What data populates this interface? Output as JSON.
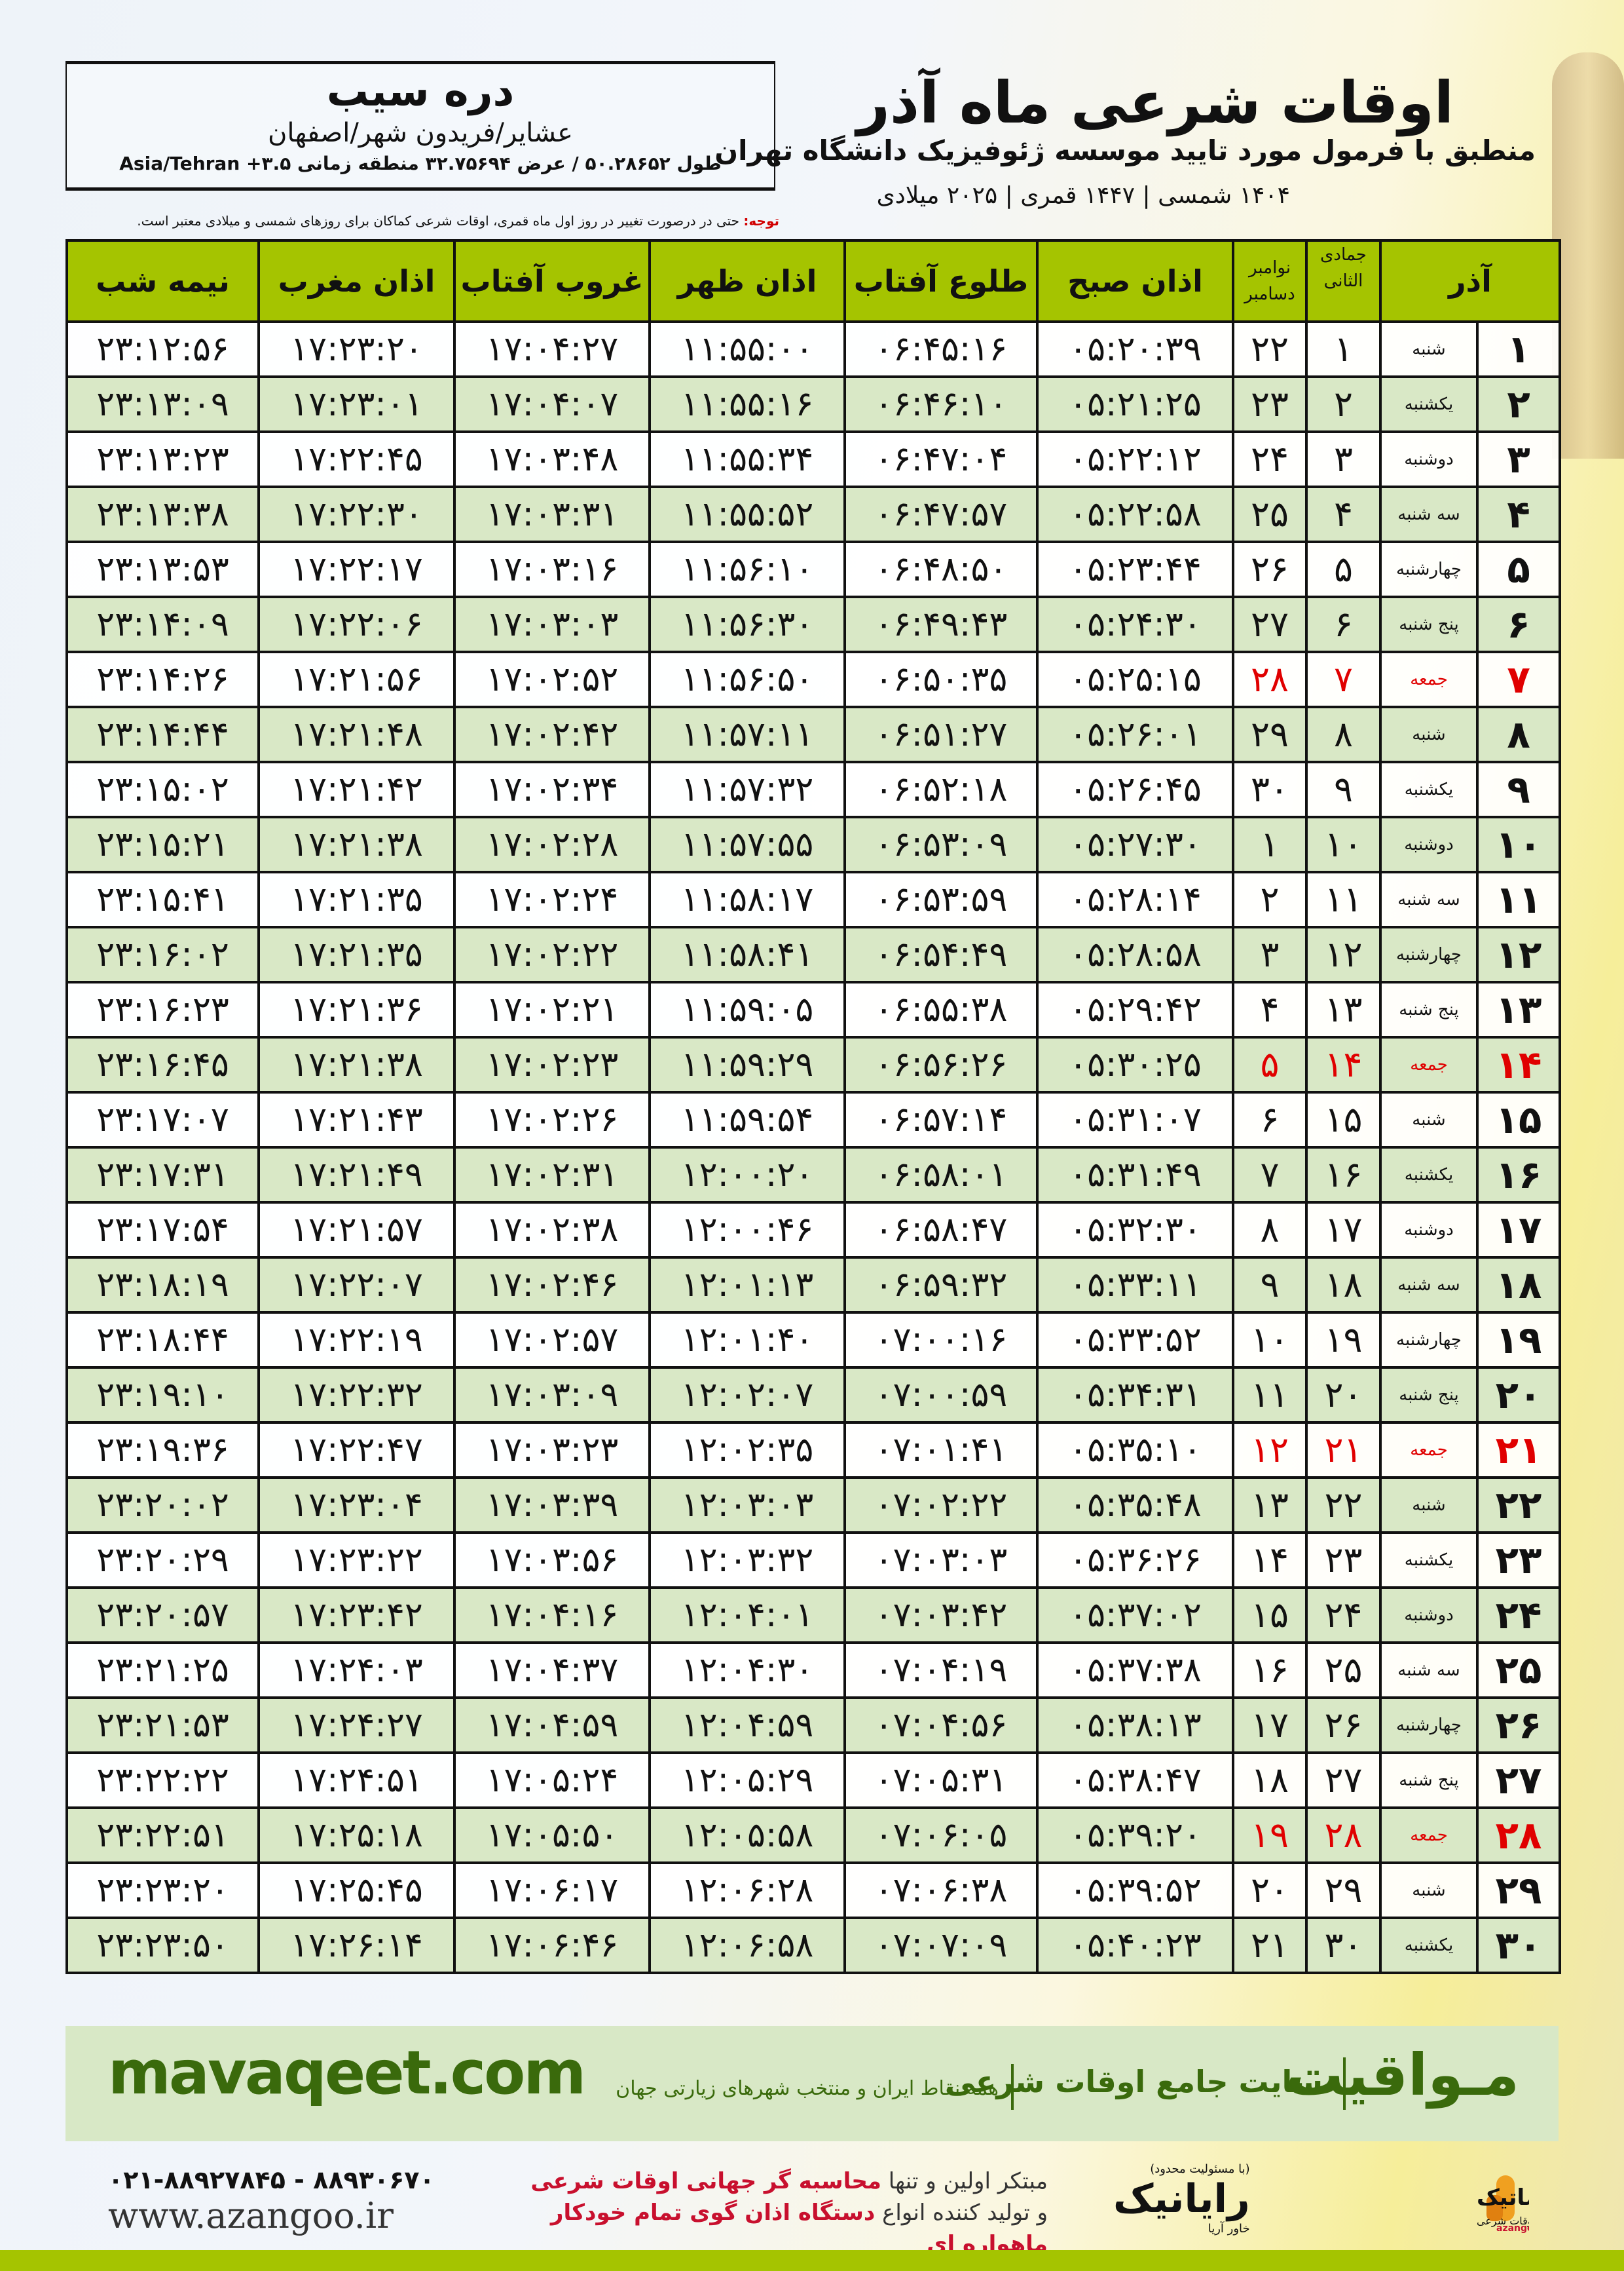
{
  "header": {
    "title": "اوقات شرعی ماه آذر",
    "subtitle": "منطبق با فرمول مورد تایید موسسه ژئوفیزیک دانشگاه تهران",
    "years": "۱۴۰۴ شمسی | ۱۴۴۷ قمری | ۲۰۲۵ میلادی"
  },
  "location": {
    "name": "دره سیب",
    "path": "عشایر/فریدون شهر/اصفهان",
    "coords": "طول ۵۰.۲۸۶۵۲ / عرض ۳۲.۷۵۶۹۴ منطقه زمانی Asia/Tehran +۳.۵"
  },
  "note": {
    "label": "توجه:",
    "text": " حتی در درصورت تغییر در روز اول ماه قمری، اوقات شرعی کماکان برای روزهای شمسی و میلادی معتبر است."
  },
  "table": {
    "headers": {
      "month": "آذر",
      "hijri": "جمادی الثانی",
      "greg_top": "نوامبر",
      "greg_bottom": "دسامبر",
      "fajr": "اذان صبح",
      "sunrise": "طلوع آفتاب",
      "dhuhr": "اذان ظهر",
      "sunset": "غروب آفتاب",
      "maghrib": "اذان مغرب",
      "midnight": "نیمه شب"
    },
    "highlight_color": "#e00000",
    "header_color": "#a5c400",
    "rows": [
      {
        "day": "۱",
        "weekday": "شنبه",
        "hijri": "۱",
        "greg": "۲۲",
        "fajr": "۰۵:۲۰:۳۹",
        "sunrise": "۰۶:۴۵:۱۶",
        "dhuhr": "۱۱:۵۵:۰۰",
        "sunset": "۱۷:۰۴:۲۷",
        "maghrib": "۱۷:۲۳:۲۰",
        "midnight": "۲۳:۱۲:۵۶"
      },
      {
        "day": "۲",
        "weekday": "یکشنبه",
        "hijri": "۲",
        "greg": "۲۳",
        "fajr": "۰۵:۲۱:۲۵",
        "sunrise": "۰۶:۴۶:۱۰",
        "dhuhr": "۱۱:۵۵:۱۶",
        "sunset": "۱۷:۰۴:۰۷",
        "maghrib": "۱۷:۲۳:۰۱",
        "midnight": "۲۳:۱۳:۰۹"
      },
      {
        "day": "۳",
        "weekday": "دوشنبه",
        "hijri": "۳",
        "greg": "۲۴",
        "fajr": "۰۵:۲۲:۱۲",
        "sunrise": "۰۶:۴۷:۰۴",
        "dhuhr": "۱۱:۵۵:۳۴",
        "sunset": "۱۷:۰۳:۴۸",
        "maghrib": "۱۷:۲۲:۴۵",
        "midnight": "۲۳:۱۳:۲۳"
      },
      {
        "day": "۴",
        "weekday": "سه شنبه",
        "hijri": "۴",
        "greg": "۲۵",
        "fajr": "۰۵:۲۲:۵۸",
        "sunrise": "۰۶:۴۷:۵۷",
        "dhuhr": "۱۱:۵۵:۵۲",
        "sunset": "۱۷:۰۳:۳۱",
        "maghrib": "۱۷:۲۲:۳۰",
        "midnight": "۲۳:۱۳:۳۸"
      },
      {
        "day": "۵",
        "weekday": "چهارشنبه",
        "hijri": "۵",
        "greg": "۲۶",
        "fajr": "۰۵:۲۳:۴۴",
        "sunrise": "۰۶:۴۸:۵۰",
        "dhuhr": "۱۱:۵۶:۱۰",
        "sunset": "۱۷:۰۳:۱۶",
        "maghrib": "۱۷:۲۲:۱۷",
        "midnight": "۲۳:۱۳:۵۳"
      },
      {
        "day": "۶",
        "weekday": "پنج شنبه",
        "hijri": "۶",
        "greg": "۲۷",
        "fajr": "۰۵:۲۴:۳۰",
        "sunrise": "۰۶:۴۹:۴۳",
        "dhuhr": "۱۱:۵۶:۳۰",
        "sunset": "۱۷:۰۳:۰۳",
        "maghrib": "۱۷:۲۲:۰۶",
        "midnight": "۲۳:۱۴:۰۹"
      },
      {
        "day": "۷",
        "weekday": "جمعه",
        "hijri": "۷",
        "greg": "۲۸",
        "friday": true,
        "fajr": "۰۵:۲۵:۱۵",
        "sunrise": "۰۶:۵۰:۳۵",
        "dhuhr": "۱۱:۵۶:۵۰",
        "sunset": "۱۷:۰۲:۵۲",
        "maghrib": "۱۷:۲۱:۵۶",
        "midnight": "۲۳:۱۴:۲۶"
      },
      {
        "day": "۸",
        "weekday": "شنبه",
        "hijri": "۸",
        "greg": "۲۹",
        "fajr": "۰۵:۲۶:۰۱",
        "sunrise": "۰۶:۵۱:۲۷",
        "dhuhr": "۱۱:۵۷:۱۱",
        "sunset": "۱۷:۰۲:۴۲",
        "maghrib": "۱۷:۲۱:۴۸",
        "midnight": "۲۳:۱۴:۴۴"
      },
      {
        "day": "۹",
        "weekday": "یکشنبه",
        "hijri": "۹",
        "greg": "۳۰",
        "fajr": "۰۵:۲۶:۴۵",
        "sunrise": "۰۶:۵۲:۱۸",
        "dhuhr": "۱۱:۵۷:۳۲",
        "sunset": "۱۷:۰۲:۳۴",
        "maghrib": "۱۷:۲۱:۴۲",
        "midnight": "۲۳:۱۵:۰۲"
      },
      {
        "day": "۱۰",
        "weekday": "دوشنبه",
        "hijri": "۱۰",
        "greg": "۱",
        "fajr": "۰۵:۲۷:۳۰",
        "sunrise": "۰۶:۵۳:۰۹",
        "dhuhr": "۱۱:۵۷:۵۵",
        "sunset": "۱۷:۰۲:۲۸",
        "maghrib": "۱۷:۲۱:۳۸",
        "midnight": "۲۳:۱۵:۲۱"
      },
      {
        "day": "۱۱",
        "weekday": "سه شنبه",
        "hijri": "۱۱",
        "greg": "۲",
        "fajr": "۰۵:۲۸:۱۴",
        "sunrise": "۰۶:۵۳:۵۹",
        "dhuhr": "۱۱:۵۸:۱۷",
        "sunset": "۱۷:۰۲:۲۴",
        "maghrib": "۱۷:۲۱:۳۵",
        "midnight": "۲۳:۱۵:۴۱"
      },
      {
        "day": "۱۲",
        "weekday": "چهارشنبه",
        "hijri": "۱۲",
        "greg": "۳",
        "fajr": "۰۵:۲۸:۵۸",
        "sunrise": "۰۶:۵۴:۴۹",
        "dhuhr": "۱۱:۵۸:۴۱",
        "sunset": "۱۷:۰۲:۲۲",
        "maghrib": "۱۷:۲۱:۳۵",
        "midnight": "۲۳:۱۶:۰۲"
      },
      {
        "day": "۱۳",
        "weekday": "پنج شنبه",
        "hijri": "۱۳",
        "greg": "۴",
        "fajr": "۰۵:۲۹:۴۲",
        "sunrise": "۰۶:۵۵:۳۸",
        "dhuhr": "۱۱:۵۹:۰۵",
        "sunset": "۱۷:۰۲:۲۱",
        "maghrib": "۱۷:۲۱:۳۶",
        "midnight": "۲۳:۱۶:۲۳"
      },
      {
        "day": "۱۴",
        "weekday": "جمعه",
        "hijri": "۱۴",
        "greg": "۵",
        "friday": true,
        "fajr": "۰۵:۳۰:۲۵",
        "sunrise": "۰۶:۵۶:۲۶",
        "dhuhr": "۱۱:۵۹:۲۹",
        "sunset": "۱۷:۰۲:۲۳",
        "maghrib": "۱۷:۲۱:۳۸",
        "midnight": "۲۳:۱۶:۴۵"
      },
      {
        "day": "۱۵",
        "weekday": "شنبه",
        "hijri": "۱۵",
        "greg": "۶",
        "fajr": "۰۵:۳۱:۰۷",
        "sunrise": "۰۶:۵۷:۱۴",
        "dhuhr": "۱۱:۵۹:۵۴",
        "sunset": "۱۷:۰۲:۲۶",
        "maghrib": "۱۷:۲۱:۴۳",
        "midnight": "۲۳:۱۷:۰۷"
      },
      {
        "day": "۱۶",
        "weekday": "یکشنبه",
        "hijri": "۱۶",
        "greg": "۷",
        "fajr": "۰۵:۳۱:۴۹",
        "sunrise": "۰۶:۵۸:۰۱",
        "dhuhr": "۱۲:۰۰:۲۰",
        "sunset": "۱۷:۰۲:۳۱",
        "maghrib": "۱۷:۲۱:۴۹",
        "midnight": "۲۳:۱۷:۳۱"
      },
      {
        "day": "۱۷",
        "weekday": "دوشنبه",
        "hijri": "۱۷",
        "greg": "۸",
        "fajr": "۰۵:۳۲:۳۰",
        "sunrise": "۰۶:۵۸:۴۷",
        "dhuhr": "۱۲:۰۰:۴۶",
        "sunset": "۱۷:۰۲:۳۸",
        "maghrib": "۱۷:۲۱:۵۷",
        "midnight": "۲۳:۱۷:۵۴"
      },
      {
        "day": "۱۸",
        "weekday": "سه شنبه",
        "hijri": "۱۸",
        "greg": "۹",
        "fajr": "۰۵:۳۳:۱۱",
        "sunrise": "۰۶:۵۹:۳۲",
        "dhuhr": "۱۲:۰۱:۱۳",
        "sunset": "۱۷:۰۲:۴۶",
        "maghrib": "۱۷:۲۲:۰۷",
        "midnight": "۲۳:۱۸:۱۹"
      },
      {
        "day": "۱۹",
        "weekday": "چهارشنبه",
        "hijri": "۱۹",
        "greg": "۱۰",
        "fajr": "۰۵:۳۳:۵۲",
        "sunrise": "۰۷:۰۰:۱۶",
        "dhuhr": "۱۲:۰۱:۴۰",
        "sunset": "۱۷:۰۲:۵۷",
        "maghrib": "۱۷:۲۲:۱۹",
        "midnight": "۲۳:۱۸:۴۴"
      },
      {
        "day": "۲۰",
        "weekday": "پنج شنبه",
        "hijri": "۲۰",
        "greg": "۱۱",
        "fajr": "۰۵:۳۴:۳۱",
        "sunrise": "۰۷:۰۰:۵۹",
        "dhuhr": "۱۲:۰۲:۰۷",
        "sunset": "۱۷:۰۳:۰۹",
        "maghrib": "۱۷:۲۲:۳۲",
        "midnight": "۲۳:۱۹:۱۰"
      },
      {
        "day": "۲۱",
        "weekday": "جمعه",
        "hijri": "۲۱",
        "greg": "۱۲",
        "friday": true,
        "fajr": "۰۵:۳۵:۱۰",
        "sunrise": "۰۷:۰۱:۴۱",
        "dhuhr": "۱۲:۰۲:۳۵",
        "sunset": "۱۷:۰۳:۲۳",
        "maghrib": "۱۷:۲۲:۴۷",
        "midnight": "۲۳:۱۹:۳۶"
      },
      {
        "day": "۲۲",
        "weekday": "شنبه",
        "hijri": "۲۲",
        "greg": "۱۳",
        "fajr": "۰۵:۳۵:۴۸",
        "sunrise": "۰۷:۰۲:۲۲",
        "dhuhr": "۱۲:۰۳:۰۳",
        "sunset": "۱۷:۰۳:۳۹",
        "maghrib": "۱۷:۲۳:۰۴",
        "midnight": "۲۳:۲۰:۰۲"
      },
      {
        "day": "۲۳",
        "weekday": "یکشنبه",
        "hijri": "۲۳",
        "greg": "۱۴",
        "fajr": "۰۵:۳۶:۲۶",
        "sunrise": "۰۷:۰۳:۰۳",
        "dhuhr": "۱۲:۰۳:۳۲",
        "sunset": "۱۷:۰۳:۵۶",
        "maghrib": "۱۷:۲۳:۲۲",
        "midnight": "۲۳:۲۰:۲۹"
      },
      {
        "day": "۲۴",
        "weekday": "دوشنبه",
        "hijri": "۲۴",
        "greg": "۱۵",
        "fajr": "۰۵:۳۷:۰۲",
        "sunrise": "۰۷:۰۳:۴۲",
        "dhuhr": "۱۲:۰۴:۰۱",
        "sunset": "۱۷:۰۴:۱۶",
        "maghrib": "۱۷:۲۳:۴۲",
        "midnight": "۲۳:۲۰:۵۷"
      },
      {
        "day": "۲۵",
        "weekday": "سه شنبه",
        "hijri": "۲۵",
        "greg": "۱۶",
        "fajr": "۰۵:۳۷:۳۸",
        "sunrise": "۰۷:۰۴:۱۹",
        "dhuhr": "۱۲:۰۴:۳۰",
        "sunset": "۱۷:۰۴:۳۷",
        "maghrib": "۱۷:۲۴:۰۳",
        "midnight": "۲۳:۲۱:۲۵"
      },
      {
        "day": "۲۶",
        "weekday": "چهارشنبه",
        "hijri": "۲۶",
        "greg": "۱۷",
        "fajr": "۰۵:۳۸:۱۳",
        "sunrise": "۰۷:۰۴:۵۶",
        "dhuhr": "۱۲:۰۴:۵۹",
        "sunset": "۱۷:۰۴:۵۹",
        "maghrib": "۱۷:۲۴:۲۷",
        "midnight": "۲۳:۲۱:۵۳"
      },
      {
        "day": "۲۷",
        "weekday": "پنج شنبه",
        "hijri": "۲۷",
        "greg": "۱۸",
        "fajr": "۰۵:۳۸:۴۷",
        "sunrise": "۰۷:۰۵:۳۱",
        "dhuhr": "۱۲:۰۵:۲۹",
        "sunset": "۱۷:۰۵:۲۴",
        "maghrib": "۱۷:۲۴:۵۱",
        "midnight": "۲۳:۲۲:۲۲"
      },
      {
        "day": "۲۸",
        "weekday": "جمعه",
        "hijri": "۲۸",
        "greg": "۱۹",
        "friday": true,
        "fajr": "۰۵:۳۹:۲۰",
        "sunrise": "۰۷:۰۶:۰۵",
        "dhuhr": "۱۲:۰۵:۵۸",
        "sunset": "۱۷:۰۵:۵۰",
        "maghrib": "۱۷:۲۵:۱۸",
        "midnight": "۲۳:۲۲:۵۱"
      },
      {
        "day": "۲۹",
        "weekday": "شنبه",
        "hijri": "۲۹",
        "greg": "۲۰",
        "fajr": "۰۵:۳۹:۵۲",
        "sunrise": "۰۷:۰۶:۳۸",
        "dhuhr": "۱۲:۰۶:۲۸",
        "sunset": "۱۷:۰۶:۱۷",
        "maghrib": "۱۷:۲۵:۴۵",
        "midnight": "۲۳:۲۳:۲۰"
      },
      {
        "day": "۳۰",
        "weekday": "یکشنبه",
        "hijri": "۳۰",
        "greg": "۲۱",
        "fajr": "۰۵:۴۰:۲۳",
        "sunrise": "۰۷:۰۷:۰۹",
        "dhuhr": "۱۲:۰۶:۵۸",
        "sunset": "۱۷:۰۶:۴۶",
        "maghrib": "۱۷:۲۶:۱۴",
        "midnight": "۲۳:۲۳:۵۰"
      }
    ]
  },
  "banner": {
    "brand": "مـواقیت",
    "slogan": "سایت جامع اوقات شرعی",
    "sub": "همه نقاط ایران و منتخب شهرهای زیارتی جهان",
    "url": "mavaqeet.com",
    "color": "#3a6a0c"
  },
  "footer": {
    "phones": "۰۲۱-۸۸۹۲۷۸۴۵ - ۸۸۹۳۰۶۷۰",
    "website": "www.azangoo.ir",
    "promo_line1_a": "مبتکر اولین و تنها ",
    "promo_line1_b": "محاسبه گر جهانی اوقات شرعی",
    "promo_line2_a": "و تولید کننده انواع ",
    "promo_line2_b": "دستگاه اذان گوی تمام خودکار ماهواره ای",
    "rayanik_small": "(با مسئولیت محدود)",
    "rayanik": "رایانیک",
    "rayanik_sub": "خاور آریا",
    "azangoo_logo": "اذانگو اتوماتیک",
    "azangoo_sub": "محاسبه گر جهانی اوقات شرعی",
    "azangoo_en": "azangoo"
  }
}
